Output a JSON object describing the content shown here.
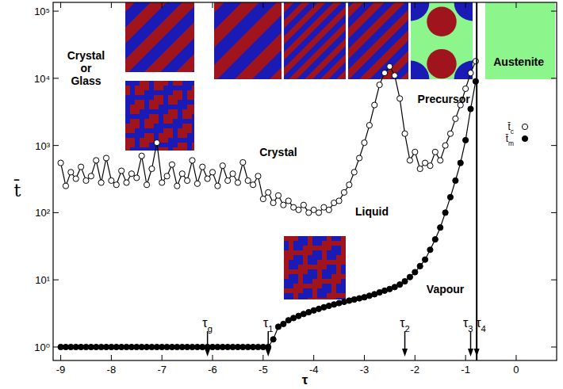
{
  "chart_data": {
    "type": "line",
    "x_label": "τ",
    "y_label": "t̄",
    "log": "y",
    "grid": false,
    "legend": "right",
    "xlim": [
      -9.15,
      0.8
    ],
    "ylim": [
      0.63,
      135000
    ],
    "xticks": [
      -9,
      -8,
      -7,
      -6,
      -5,
      -4,
      -3,
      -2,
      -1,
      0
    ],
    "yticks": [
      {
        "value": 1,
        "label": "10⁰"
      },
      {
        "value": 10,
        "label": "10¹"
      },
      {
        "value": 100,
        "label": "10²"
      },
      {
        "value": 1000,
        "label": "10³"
      },
      {
        "value": 10000,
        "label": "10⁴"
      },
      {
        "value": 100000,
        "label": "10⁵"
      }
    ],
    "x": [
      -9,
      -8.9,
      -8.8,
      -8.7,
      -8.6,
      -8.5,
      -8.4,
      -8.3,
      -8.2,
      -8.1,
      -8,
      -7.9,
      -7.8,
      -7.7,
      -7.6,
      -7.5,
      -7.4,
      -7.3,
      -7.2,
      -7.1,
      -7,
      -6.9,
      -6.8,
      -6.7,
      -6.6,
      -6.5,
      -6.4,
      -6.3,
      -6.2,
      -6.1,
      -6,
      -5.9,
      -5.8,
      -5.7,
      -5.6,
      -5.5,
      -5.4,
      -5.3,
      -5.2,
      -5.1,
      -5,
      -4.9,
      -4.8,
      -4.7,
      -4.6,
      -4.5,
      -4.4,
      -4.3,
      -4.2,
      -4.1,
      -4,
      -3.9,
      -3.8,
      -3.7,
      -3.6,
      -3.5,
      -3.4,
      -3.3,
      -3.2,
      -3.1,
      -3,
      -2.9,
      -2.8,
      -2.7,
      -2.6,
      -2.5,
      -2.4,
      -2.3,
      -2.2,
      -2.1,
      -2,
      -1.9,
      -1.8,
      -1.7,
      -1.6,
      -1.5,
      -1.4,
      -1.3,
      -1.2,
      -1.1,
      -1,
      -0.9,
      -0.8
    ],
    "series": [
      {
        "name": "t̄c",
        "color": "#000000",
        "marker": "open-circle",
        "line_style": "solid",
        "values": [
          550,
          250,
          400,
          320,
          480,
          300,
          350,
          600,
          280,
          650,
          300,
          260,
          420,
          280,
          380,
          330,
          700,
          260,
          450,
          1100,
          280,
          350,
          520,
          250,
          380,
          300,
          600,
          270,
          480,
          320,
          400,
          250,
          500,
          300,
          380,
          280,
          560,
          300,
          260,
          350,
          160,
          200,
          140,
          180,
          130,
          150,
          120,
          110,
          130,
          100,
          110,
          100,
          120,
          110,
          140,
          150,
          200,
          260,
          400,
          650,
          1100,
          2000,
          4000,
          8000,
          12000,
          15000,
          11000,
          5000,
          1500,
          600,
          800,
          450,
          550,
          500,
          800,
          600,
          1000,
          1500,
          2500,
          4000,
          7000,
          12000,
          18000
        ]
      },
      {
        "name": "t̄m",
        "color": "#000000",
        "marker": "filled-circle",
        "line_style": "solid",
        "values": [
          1,
          1,
          1,
          1,
          1,
          1,
          1,
          1,
          1,
          1,
          1,
          1,
          1,
          1,
          1,
          1,
          1,
          1,
          1,
          1,
          1,
          1,
          1,
          1,
          1,
          1,
          1,
          1,
          1,
          1,
          1,
          1,
          1,
          1,
          1,
          1,
          1,
          1,
          1,
          1,
          1,
          1,
          1.3,
          2,
          2.2,
          2.5,
          2.7,
          2.9,
          3.1,
          3.3,
          3.5,
          3.7,
          3.9,
          4.1,
          4.3,
          4.5,
          4.7,
          4.9,
          5.1,
          5.3,
          5.5,
          5.8,
          6.1,
          6.5,
          6.9,
          7.3,
          7.8,
          8.5,
          9.5,
          11,
          13,
          16,
          20,
          28,
          40,
          60,
          100,
          170,
          300,
          550,
          1200,
          3500,
          9000
        ]
      }
    ],
    "annotations": [
      {
        "text": "Crystal or Glass",
        "x": -8.5,
        "y": 19000
      },
      {
        "text": "Crystal",
        "x": -4.7,
        "y": 700
      },
      {
        "text": "Liquid",
        "x": -2.85,
        "y": 90
      },
      {
        "text": "Vapour",
        "x": -1.4,
        "y": 6.3
      },
      {
        "text": "Precursor",
        "x": -1.43,
        "y": 4300
      },
      {
        "text": "Austenite",
        "x": 0.05,
        "y": 15500
      }
    ],
    "tau_markers": [
      {
        "label": "τg",
        "x": -6.1
      },
      {
        "label": "τ1",
        "x": -4.9
      },
      {
        "label": "τ2",
        "x": -2.2
      },
      {
        "label": "τ3",
        "x": -0.9
      },
      {
        "label": "τ4",
        "x": -0.78
      }
    ],
    "phase_boundary": -0.78
  }
}
